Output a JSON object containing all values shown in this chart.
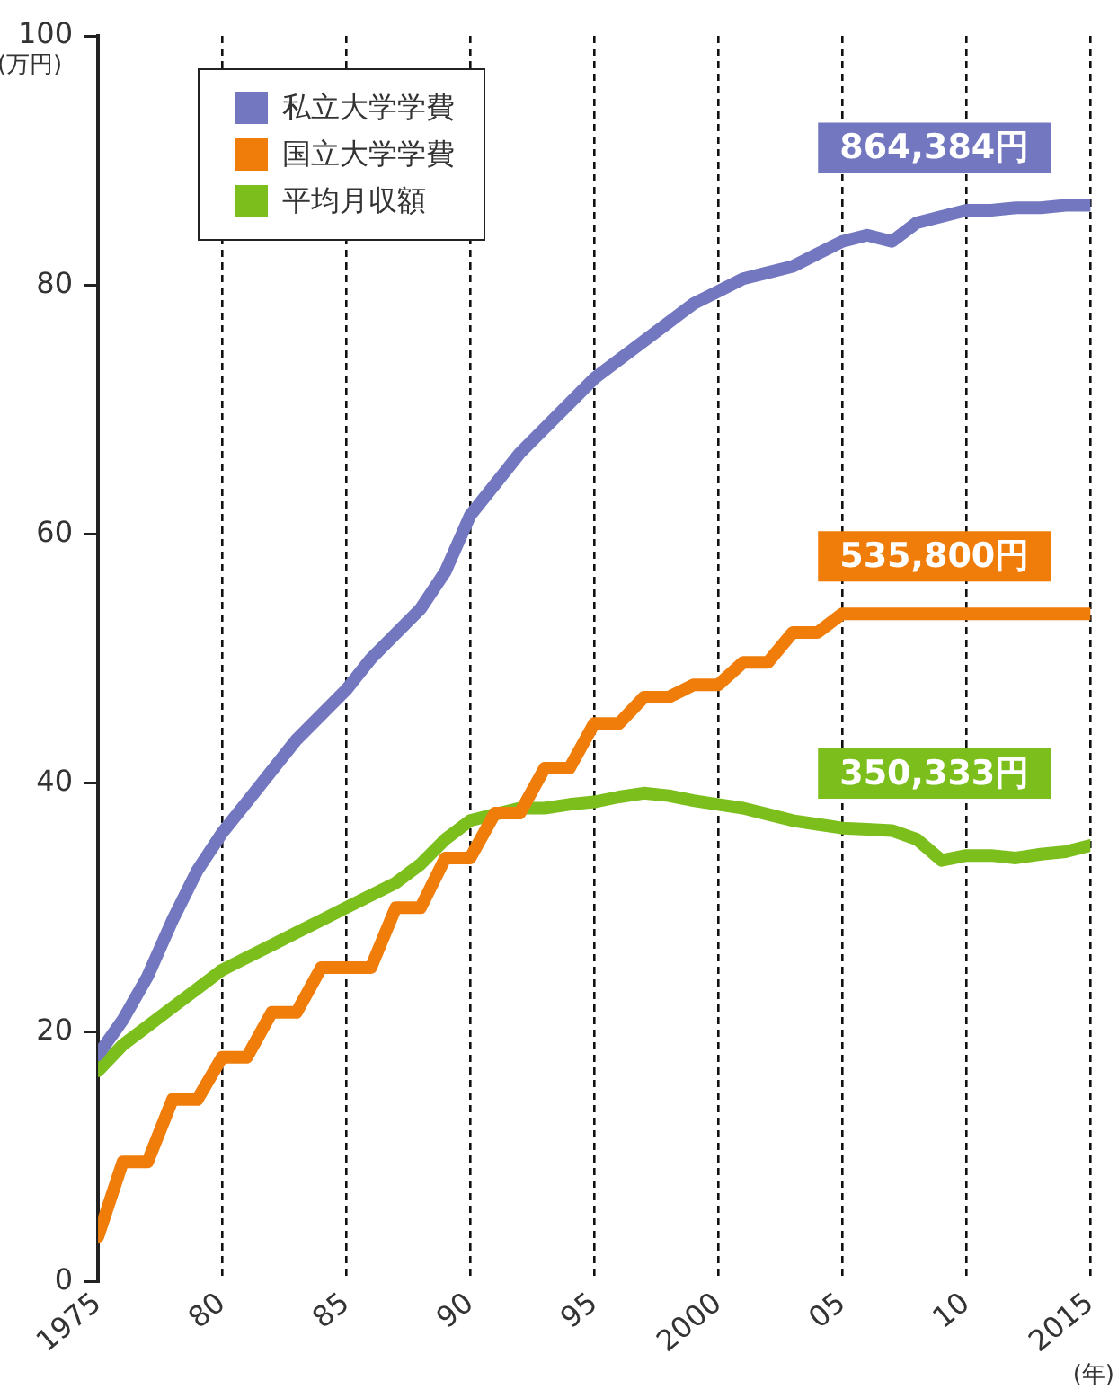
{
  "chart_data": {
    "type": "line",
    "xlabel": "(年)",
    "ylabel": "(万円)",
    "x": [
      1975,
      1976,
      1977,
      1978,
      1979,
      1980,
      1981,
      1982,
      1983,
      1984,
      1985,
      1986,
      1987,
      1988,
      1989,
      1990,
      1991,
      1992,
      1993,
      1994,
      1995,
      1996,
      1997,
      1998,
      1999,
      2000,
      2001,
      2002,
      2003,
      2004,
      2005,
      2006,
      2007,
      2008,
      2009,
      2010,
      2011,
      2012,
      2013,
      2014,
      2015
    ],
    "series": [
      {
        "name": "私立大学学費",
        "color": "#7277c0",
        "values": [
          18.2,
          21,
          24.5,
          29,
          33,
          36,
          38.5,
          41,
          43.5,
          45.5,
          47.5,
          50,
          52,
          54,
          57,
          61.5,
          64,
          66.5,
          68.5,
          70.5,
          72.5,
          74,
          75.5,
          77,
          78.5,
          79.5,
          80.5,
          81,
          81.5,
          82.5,
          83.5,
          84,
          83.5,
          85,
          85.5,
          86,
          86,
          86.2,
          86.2,
          86.4,
          86.4
        ]
      },
      {
        "name": "国立大学学費",
        "color": "#f07d0a",
        "values": [
          3.6,
          9.6,
          9.6,
          14.6,
          14.6,
          18,
          18,
          21.6,
          21.6,
          25.2,
          25.2,
          25.2,
          30,
          30,
          34,
          34,
          37.6,
          37.6,
          41.2,
          41.2,
          44.8,
          44.8,
          46.9,
          46.9,
          47.9,
          47.9,
          49.7,
          49.7,
          52.1,
          52.1,
          53.6,
          53.6,
          53.6,
          53.6,
          53.6,
          53.6,
          53.6,
          53.6,
          53.6,
          53.6,
          53.6
        ]
      },
      {
        "name": "平均月収額",
        "color": "#7cbf1c",
        "values": [
          16.9,
          19,
          20.5,
          22,
          23.5,
          25,
          26,
          27,
          28,
          29,
          30,
          31,
          32,
          33.5,
          35.5,
          37,
          37.5,
          38,
          38,
          38.3,
          38.5,
          38.9,
          39.2,
          39,
          38.6,
          38.3,
          38,
          37.5,
          37,
          36.7,
          36.4,
          36.3,
          36.2,
          35.5,
          33.8,
          34.2,
          34.2,
          34,
          34.3,
          34.5,
          35
        ]
      }
    ],
    "annotations": [
      "864,384円",
      "535,800円",
      "350,333円"
    ],
    "xlim": [
      1975,
      2015
    ],
    "xticks": [
      1975,
      {
        "value": 1980,
        "label": "80"
      },
      {
        "value": 1985,
        "label": "85"
      },
      {
        "value": 1990,
        "label": "90"
      },
      {
        "value": 1995,
        "label": "95"
      },
      2000,
      {
        "value": 2005,
        "label": "05"
      },
      {
        "value": 2010,
        "label": "10"
      },
      2015
    ],
    "ylim": [
      0,
      100
    ],
    "yticks": [
      0,
      20,
      40,
      60,
      80,
      100
    ],
    "grid": "x",
    "legend": "top left",
    "marker": "none",
    "line_style": "solid"
  }
}
